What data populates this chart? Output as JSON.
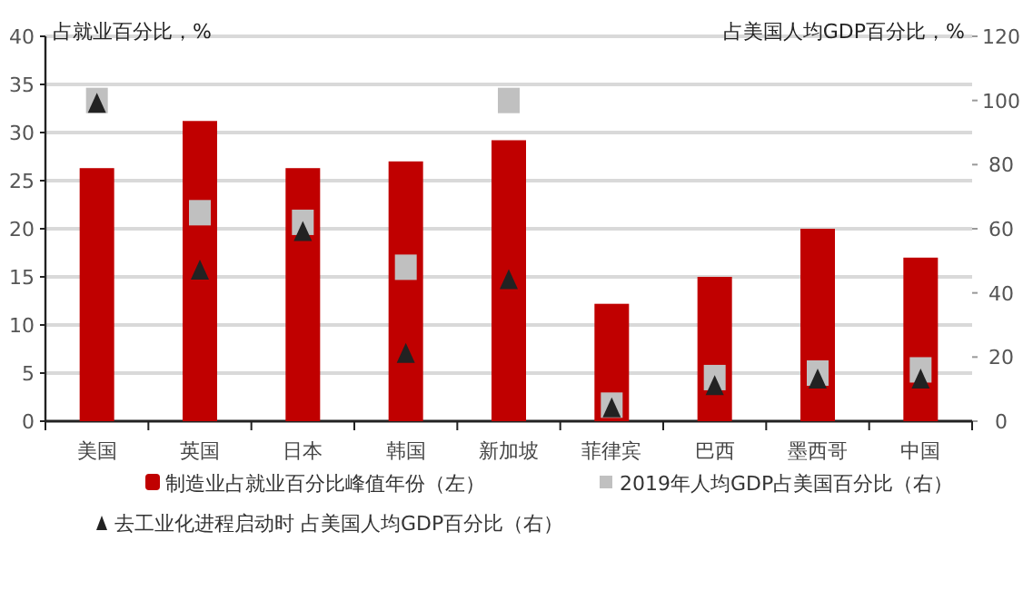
{
  "chart_data": {
    "type": "bar",
    "categories": [
      "美国",
      "英国",
      "日本",
      "韩国",
      "新加坡",
      "菲律宾",
      "巴西",
      "墨西哥",
      "中国"
    ],
    "ylabel": "占就业百分比，%",
    "y2label": "占美国人均GDP百分比，%",
    "ylim": [
      0,
      40
    ],
    "yticks": [
      0,
      5,
      10,
      15,
      20,
      25,
      30,
      35,
      40
    ],
    "y2lim": [
      0,
      120
    ],
    "y2ticks": [
      0,
      20,
      40,
      60,
      80,
      100,
      120
    ],
    "grid": "y",
    "legend": "bottom",
    "series": [
      {
        "name": "制造业占就业百分比峰值年份（左）",
        "color": "#c00000",
        "values": [
          26.3,
          31.2,
          26.3,
          27,
          29.2,
          12.2,
          15,
          20,
          17
        ]
      },
      {
        "name": "2019年人均GDP占美国百分比（右）",
        "type": "scatter",
        "axis": "y2",
        "marker": "square",
        "color": "#c0c0c0",
        "values": [
          100,
          65,
          62,
          48,
          100,
          5,
          13.6,
          15,
          16
        ]
      },
      {
        "name": "去工业化进程启动时 占美国人均GDP百分比（右）",
        "type": "scatter",
        "axis": "y2",
        "marker": "triangle",
        "color": "#222222",
        "values": [
          99,
          47,
          59,
          21,
          44,
          4,
          11,
          13,
          13
        ]
      }
    ]
  }
}
